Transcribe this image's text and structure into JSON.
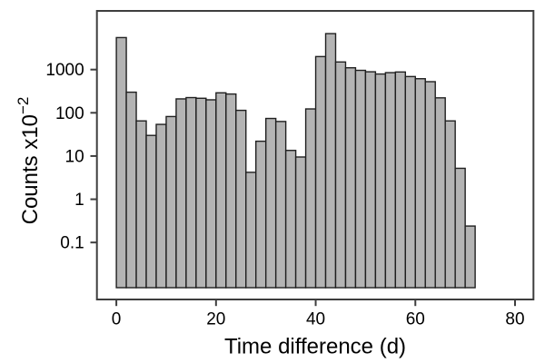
{
  "chart_data": {
    "type": "bar",
    "subtype": "histogram",
    "title": "",
    "xlabel": "Time difference (d)",
    "ylabel": "Counts x10⁻²",
    "ylabel_main": "Counts x10",
    "ylabel_sup": "−2",
    "yscale": "log",
    "xscale": "linear",
    "bin_width_days": 2,
    "bins_start_day": [
      0,
      2,
      4,
      6,
      8,
      10,
      12,
      14,
      16,
      18,
      20,
      22,
      24,
      26,
      28,
      30,
      32,
      34,
      36,
      38,
      40,
      42,
      44,
      46,
      48,
      50,
      52,
      54,
      56,
      58,
      60,
      62,
      64,
      66,
      68,
      70
    ],
    "values": [
      5500,
      300,
      65,
      30,
      54,
      82,
      210,
      225,
      217,
      200,
      290,
      272,
      114,
      4.2,
      22,
      74,
      63,
      13.5,
      9.5,
      123,
      2000,
      6800,
      1500,
      1100,
      960,
      890,
      790,
      850,
      880,
      690,
      615,
      525,
      222,
      65,
      5.2,
      0.24
    ],
    "x_ticks": [
      0,
      20,
      40,
      60,
      80
    ],
    "x_tick_labels": [
      "0",
      "20",
      "40",
      "60",
      "80"
    ],
    "y_ticks": [
      0.1,
      1,
      10,
      100,
      1000
    ],
    "y_tick_labels": [
      "0.1",
      "1",
      "10",
      "100",
      "1000"
    ],
    "xlim": [
      -3.9,
      83.7
    ],
    "ylim": [
      0.0048,
      22800
    ],
    "bar_baseline": 0.009,
    "grid": false,
    "legend": false,
    "colors": {
      "bar_fill": "#b4b4b4",
      "bar_stroke": "#202020",
      "frame": "#3e3e3e",
      "text": "#000000",
      "background": "#ffffff"
    }
  }
}
